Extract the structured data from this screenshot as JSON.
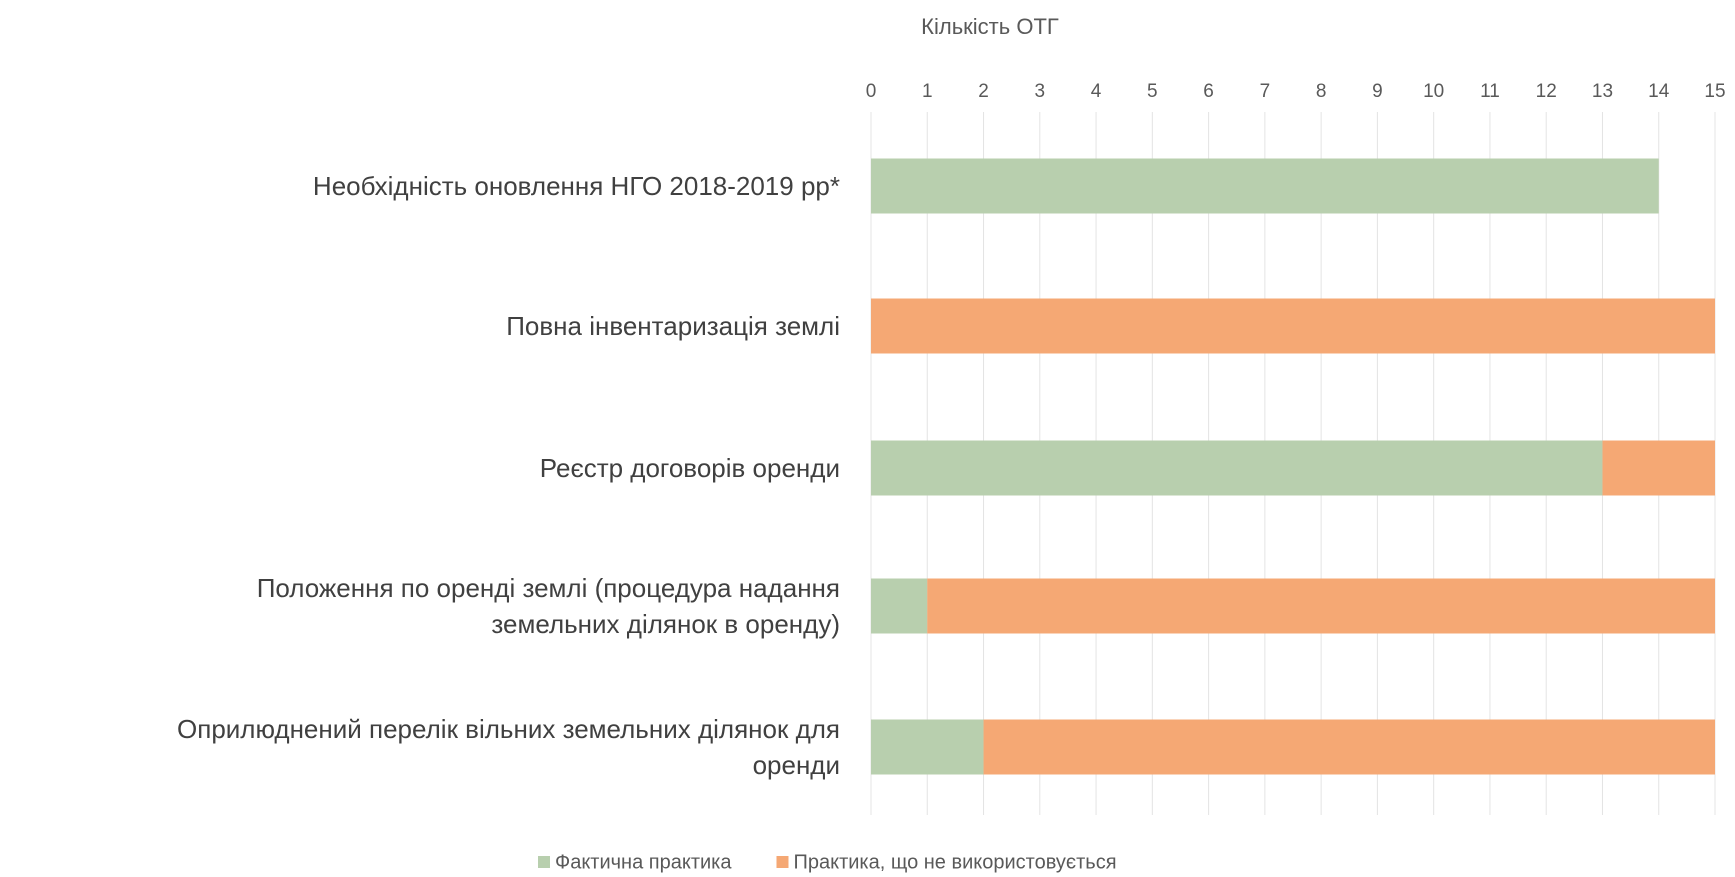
{
  "chart_data": {
    "type": "stacked-bar-horizontal",
    "xlabel": "Кількість ОТГ",
    "categories": [
      "Необхідність оновлення НГО 2018-2019 рр*",
      "Повна інвентаризація землі",
      "Реєстр договорів оренди",
      "Положення по оренді землі (процедура надання\nземельних ділянок в оренду)",
      "Оприлюднений перелік вільних земельних ділянок для\nоренди"
    ],
    "series": [
      {
        "name": "Фактична практика",
        "color": "#b8cfae",
        "values": [
          14,
          0,
          13,
          1,
          2
        ]
      },
      {
        "name": "Практика, що не використовується",
        "color": "#f5a874",
        "values": [
          0,
          15,
          2,
          14,
          13
        ]
      }
    ],
    "xlim": [
      0,
      15
    ],
    "xticks": [
      0,
      1,
      2,
      3,
      4,
      5,
      6,
      7,
      8,
      9,
      10,
      11,
      12,
      13,
      14,
      15
    ],
    "grid": true,
    "legend": "bottom"
  }
}
